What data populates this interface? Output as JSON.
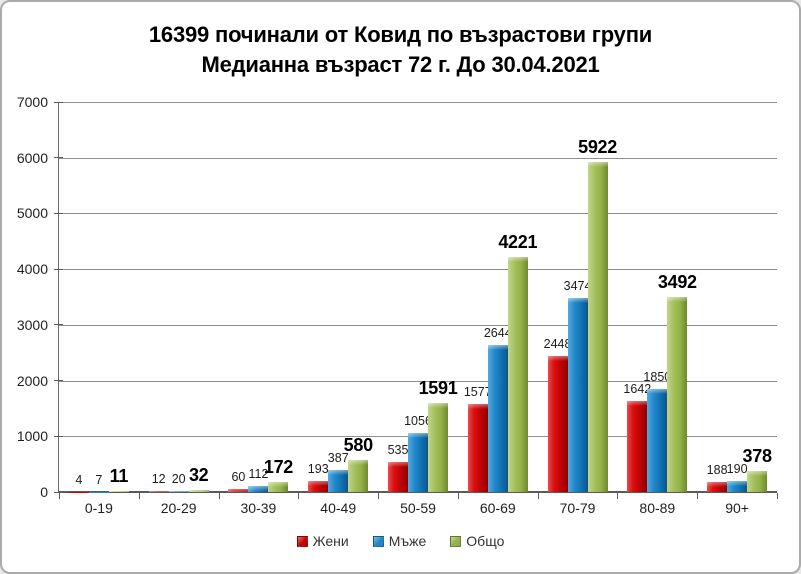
{
  "title": {
    "line1": "16399 починали от Ковид по възрастови групи",
    "line2": "Медианна възраст 72 г. До 30.04.2021"
  },
  "chart_data": {
    "type": "bar",
    "title": "16399 починали от Ковид по възрастови групи",
    "subtitle": "Медианна възраст 72 г. До 30.04.2021",
    "categories": [
      "0-19",
      "20-29",
      "30-39",
      "40-49",
      "50-59",
      "60-69",
      "70-79",
      "80-89",
      "90+"
    ],
    "series": [
      {
        "name": "Жени",
        "color": "#c60303",
        "values": [
          4,
          12,
          60,
          193,
          535,
          1577,
          2448,
          1642,
          188
        ],
        "label_style": "normal"
      },
      {
        "name": "Мъже",
        "color": "#1f87ca",
        "values": [
          7,
          20,
          112,
          387,
          1056,
          2644,
          3474,
          1850,
          190
        ],
        "label_style": "normal"
      },
      {
        "name": "Общо",
        "color": "#93b247",
        "values": [
          11,
          32,
          172,
          580,
          1591,
          4221,
          5922,
          3492,
          378
        ],
        "label_style": "bold"
      }
    ],
    "ylim": [
      0,
      7000
    ],
    "yticks": [
      0,
      1000,
      2000,
      3000,
      4000,
      5000,
      6000,
      7000
    ],
    "grid": true,
    "legend_position": "bottom",
    "xlabel": "",
    "ylabel": ""
  }
}
